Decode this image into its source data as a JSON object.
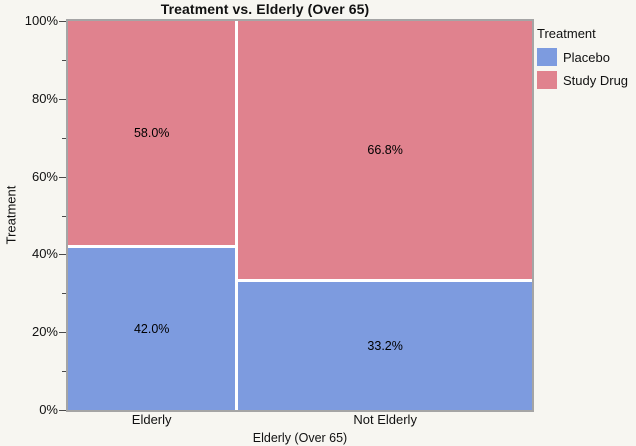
{
  "figure": {
    "background": "#F7F6F1",
    "frame_color": "#A5A5A5",
    "gap_color": "#FFFFFF"
  },
  "chart_data": {
    "type": "mosaic",
    "title": "Treatment vs. Elderly (Over 65)",
    "xlabel": "Elderly (Over 65)",
    "ylabel": "Treatment",
    "x_categories": [
      "Elderly",
      "Not Elderly"
    ],
    "x_category_width_shares": [
      0.363,
      0.637
    ],
    "stack_order_bottom_to_top": [
      "Placebo",
      "Study Drug"
    ],
    "series": [
      {
        "name": "Placebo",
        "color": "#7D9BDF",
        "values": [
          42.0,
          33.2
        ],
        "labels": [
          "42.0%",
          "33.2%"
        ]
      },
      {
        "name": "Study Drug",
        "color": "#E0828E",
        "values": [
          58.0,
          66.8
        ],
        "labels": [
          "58.0%",
          "66.8%"
        ]
      }
    ],
    "y_axis": {
      "range": [
        0,
        100
      ],
      "major_ticks": [
        {
          "value": 0,
          "label": "0%"
        },
        {
          "value": 20,
          "label": "20%"
        },
        {
          "value": 40,
          "label": "40%"
        },
        {
          "value": 60,
          "label": "60%"
        },
        {
          "value": 80,
          "label": "80%"
        },
        {
          "value": 100,
          "label": "100%"
        }
      ],
      "minor_ticks": [
        10,
        30,
        50,
        70,
        90
      ]
    },
    "legend": {
      "title": "Treatment",
      "position": "right",
      "entries": [
        {
          "label": "Placebo",
          "color": "#7D9BDF"
        },
        {
          "label": "Study Drug",
          "color": "#E0828E"
        }
      ]
    }
  }
}
